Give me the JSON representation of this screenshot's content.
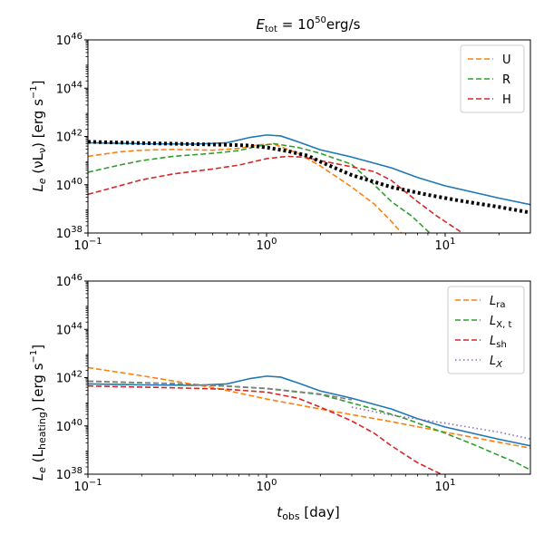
{
  "chart_data": [
    {
      "type": "line",
      "title": {
        "base": "E",
        "sub": "tot",
        "eq": " = 10",
        "exp": "50",
        "unit": "erg/s"
      },
      "ylabel_text": {
        "a": "L",
        "b": "e",
        "c": " (νL",
        "d": "ν",
        "e": ") [erg s",
        "f": "−1",
        "g": "]"
      },
      "xlim": [
        0.1,
        30
      ],
      "ylim": [
        1e+38,
        1e+46
      ],
      "x_scale": "log",
      "y_scale": "log",
      "legend_position": "top-right",
      "x_ticks": [
        {
          "value": 0.1,
          "base": "10",
          "exp": "−1"
        },
        {
          "value": 1,
          "base": "10",
          "exp": "0"
        },
        {
          "value": 10,
          "base": "10",
          "exp": "1"
        }
      ],
      "y_ticks": [
        {
          "value": 1e+38,
          "base": "10",
          "exp": "38"
        },
        {
          "value": 1e+40,
          "base": "10",
          "exp": "40"
        },
        {
          "value": 1e+42,
          "base": "10",
          "exp": "42"
        },
        {
          "value": 1e+44,
          "base": "10",
          "exp": "44"
        },
        {
          "value": 1e+46,
          "base": "10",
          "exp": "46"
        }
      ],
      "series": [
        {
          "name": "Total",
          "legend": false,
          "color": "#1f77b4",
          "style": "solid",
          "x": [
            0.1,
            0.2,
            0.4,
            0.6,
            0.8,
            1.0,
            1.2,
            1.5,
            2,
            3,
            5,
            7,
            10,
            20,
            30
          ],
          "y": [
            5.5e+41,
            5e+41,
            4.8e+41,
            5.5e+41,
            9e+41,
            1.15e+42,
            1.05e+42,
            6e+41,
            2.8e+41,
            1.4e+41,
            5e+40,
            2e+40,
            9e+39,
            2.8e+39,
            1.5e+39
          ]
        },
        {
          "name": "U",
          "legend": true,
          "label": "U",
          "color": "#ff7f0e",
          "style": "dashed",
          "x": [
            0.1,
            0.15,
            0.2,
            0.3,
            0.5,
            0.7,
            0.9,
            1.1,
            1.5,
            2,
            3,
            4,
            5,
            5.7
          ],
          "y": [
            1.5e+41,
            2.3e+41,
            2.7e+41,
            2.9e+41,
            2.7e+41,
            3.2e+41,
            4.5e+41,
            4.8e+41,
            2e+41,
            6e+40,
            8e+39,
            1.6e+39,
            3e+38,
            1e+38
          ]
        },
        {
          "name": "R",
          "legend": true,
          "label": "R",
          "color": "#2ca02c",
          "style": "dashed",
          "x": [
            0.1,
            0.15,
            0.2,
            0.3,
            0.5,
            0.7,
            0.9,
            1.1,
            1.5,
            2,
            3,
            4,
            5,
            6.5,
            8.2
          ],
          "y": [
            3.3e+40,
            6.5e+40,
            1e+41,
            1.5e+41,
            2e+41,
            2.6e+41,
            4e+41,
            5e+41,
            3.5e+41,
            2e+41,
            7e+40,
            1e+40,
            2e+39,
            5e+38,
            1e+38
          ]
        },
        {
          "name": "H",
          "legend": true,
          "label": "H",
          "color": "#d62728",
          "style": "dashed",
          "x": [
            0.1,
            0.15,
            0.2,
            0.3,
            0.5,
            0.7,
            1.0,
            1.3,
            1.6,
            2,
            3,
            4,
            5,
            7,
            9,
            12.5
          ],
          "y": [
            4e+39,
            9e+39,
            1.6e+40,
            2.8e+40,
            4.5e+40,
            6.5e+40,
            1.2e+41,
            1.5e+41,
            1.4e+41,
            1e+41,
            5.5e+40,
            3.5e+40,
            1.5e+40,
            2e+39,
            5e+38,
            1e+38
          ]
        },
        {
          "name": "Observed",
          "legend": false,
          "color": "#000000",
          "style": "dotted-thick",
          "x": [
            0.1,
            0.2,
            0.4,
            0.6,
            0.8,
            1.0,
            1.3,
            1.7,
            2,
            3,
            5,
            8,
            12,
            20,
            30
          ],
          "y": [
            6e+41,
            5.3e+41,
            4.8e+41,
            4.5e+41,
            4.2e+41,
            3.5e+41,
            2.5e+41,
            1.6e+41,
            9e+40,
            2.5e+40,
            8e+39,
            3.8e+39,
            2.2e+39,
            1.2e+39,
            7e+38
          ]
        }
      ]
    },
    {
      "type": "line",
      "xlabel_text": {
        "a": "t",
        "b": "obs",
        "c": " [day]"
      },
      "ylabel_text": {
        "a": "L",
        "b": "e",
        "c": " (L",
        "d": "heating",
        "e": ") [erg s",
        "f": "−1",
        "g": "]"
      },
      "xlim": [
        0.1,
        30
      ],
      "ylim": [
        1e+38,
        1e+46
      ],
      "x_scale": "log",
      "y_scale": "log",
      "legend_position": "top-right",
      "x_ticks": [
        {
          "value": 0.1,
          "base": "10",
          "exp": "−1"
        },
        {
          "value": 1,
          "base": "10",
          "exp": "0"
        },
        {
          "value": 10,
          "base": "10",
          "exp": "1"
        }
      ],
      "y_ticks": [
        {
          "value": 1e+38,
          "base": "10",
          "exp": "38"
        },
        {
          "value": 1e+40,
          "base": "10",
          "exp": "40"
        },
        {
          "value": 1e+42,
          "base": "10",
          "exp": "42"
        },
        {
          "value": 1e+44,
          "base": "10",
          "exp": "44"
        },
        {
          "value": 1e+46,
          "base": "10",
          "exp": "46"
        }
      ],
      "series": [
        {
          "name": "Total",
          "legend": false,
          "color": "#1f77b4",
          "style": "solid",
          "x": [
            0.1,
            0.2,
            0.4,
            0.6,
            0.8,
            1.0,
            1.2,
            1.5,
            2,
            3,
            5,
            7,
            10,
            20,
            30
          ],
          "y": [
            5.5e+41,
            5e+41,
            4.8e+41,
            5.5e+41,
            9e+41,
            1.15e+42,
            1.05e+42,
            6e+41,
            2.8e+41,
            1.4e+41,
            5e+40,
            2e+40,
            9e+39,
            2.8e+39,
            1.5e+39
          ]
        },
        {
          "name": "L_ra",
          "legend": true,
          "label_main": "L",
          "label_sub": "ra",
          "color": "#ff7f0e",
          "style": "dashed",
          "x": [
            0.1,
            0.2,
            0.5,
            1,
            2,
            5,
            10,
            20,
            30
          ],
          "y": [
            2.6e+42,
            1.2e+42,
            3.9e+41,
            1.3e+41,
            5e+40,
            1.5e+40,
            5.5e+39,
            2.1e+39,
            1.2e+39
          ]
        },
        {
          "name": "L_X,t",
          "legend": true,
          "label_main": "L",
          "label_sub": "X, t",
          "color": "#2ca02c",
          "style": "dashed",
          "x": [
            0.1,
            0.3,
            0.6,
            1,
            2,
            4,
            6,
            10,
            15,
            20,
            25,
            30
          ],
          "y": [
            7e+41,
            5.6e+41,
            4.4e+41,
            3.5e+41,
            2e+41,
            5e+40,
            2e+40,
            5e+39,
            1.5e+39,
            6e+38,
            3e+38,
            1.5e+38
          ]
        },
        {
          "name": "L_sh",
          "legend": true,
          "label_main": "L",
          "label_sub": "sh",
          "color": "#d62728",
          "style": "dashed",
          "x": [
            0.1,
            0.3,
            0.6,
            1,
            1.5,
            2,
            3,
            4,
            5,
            7,
            9.5
          ],
          "y": [
            4.5e+41,
            3.8e+41,
            3.3e+41,
            2.5e+41,
            1.4e+41,
            6e+40,
            1.6e+40,
            5e+39,
            1.5e+39,
            3e+38,
            1e+38
          ]
        },
        {
          "name": "L_X",
          "legend": true,
          "label_main": "L",
          "label_sub": "X",
          "label_italic_sub": true,
          "color": "#9467bd",
          "style": "dotted",
          "x": [
            3,
            5,
            10,
            20,
            30
          ],
          "y": [
            6e+40,
            2.8e+40,
            1.3e+40,
            5.5e+39,
            2.9e+39
          ]
        },
        {
          "name": "L_X,t early",
          "legend": false,
          "color": "#808080",
          "style": "dashed",
          "x": [
            0.1,
            0.3,
            0.6,
            1,
            2,
            3
          ],
          "y": [
            7.2e+41,
            5.7e+41,
            4.5e+41,
            3.6e+41,
            2.1e+41,
            1.2e+41
          ]
        }
      ]
    }
  ]
}
